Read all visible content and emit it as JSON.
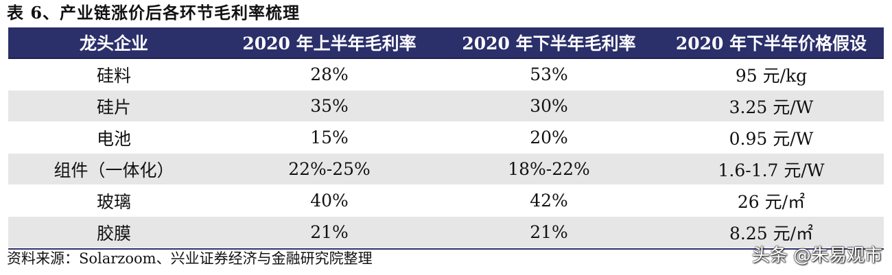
{
  "title": "表 6、产业链涨价后各环节毛利率梳理",
  "table": {
    "headers": [
      "龙头企业",
      "2020 年上半年毛利率",
      "2020 年下半年毛利率",
      "2020 年下半年价格假设"
    ],
    "rows": [
      [
        "硅料",
        "28%",
        "53%",
        "95 元/kg"
      ],
      [
        "硅片",
        "35%",
        "30%",
        "3.25 元/W"
      ],
      [
        "电池",
        "15%",
        "20%",
        "0.95 元/W"
      ],
      [
        "组件（一体化）",
        "22%-25%",
        "18%-22%",
        "1.6-1.7 元/W"
      ],
      [
        "玻璃",
        "40%",
        "42%",
        "26 元/㎡"
      ],
      [
        "胶膜",
        "21%",
        "21%",
        "8.25 元/㎡"
      ]
    ]
  },
  "source": "资料来源：Solarzoom、兴业证券经济与金融研究院整理",
  "watermark": "头条 @朱易观市",
  "colors": {
    "header_bg": "#2b2f6a",
    "shade_bg": "#e6e6e6"
  }
}
